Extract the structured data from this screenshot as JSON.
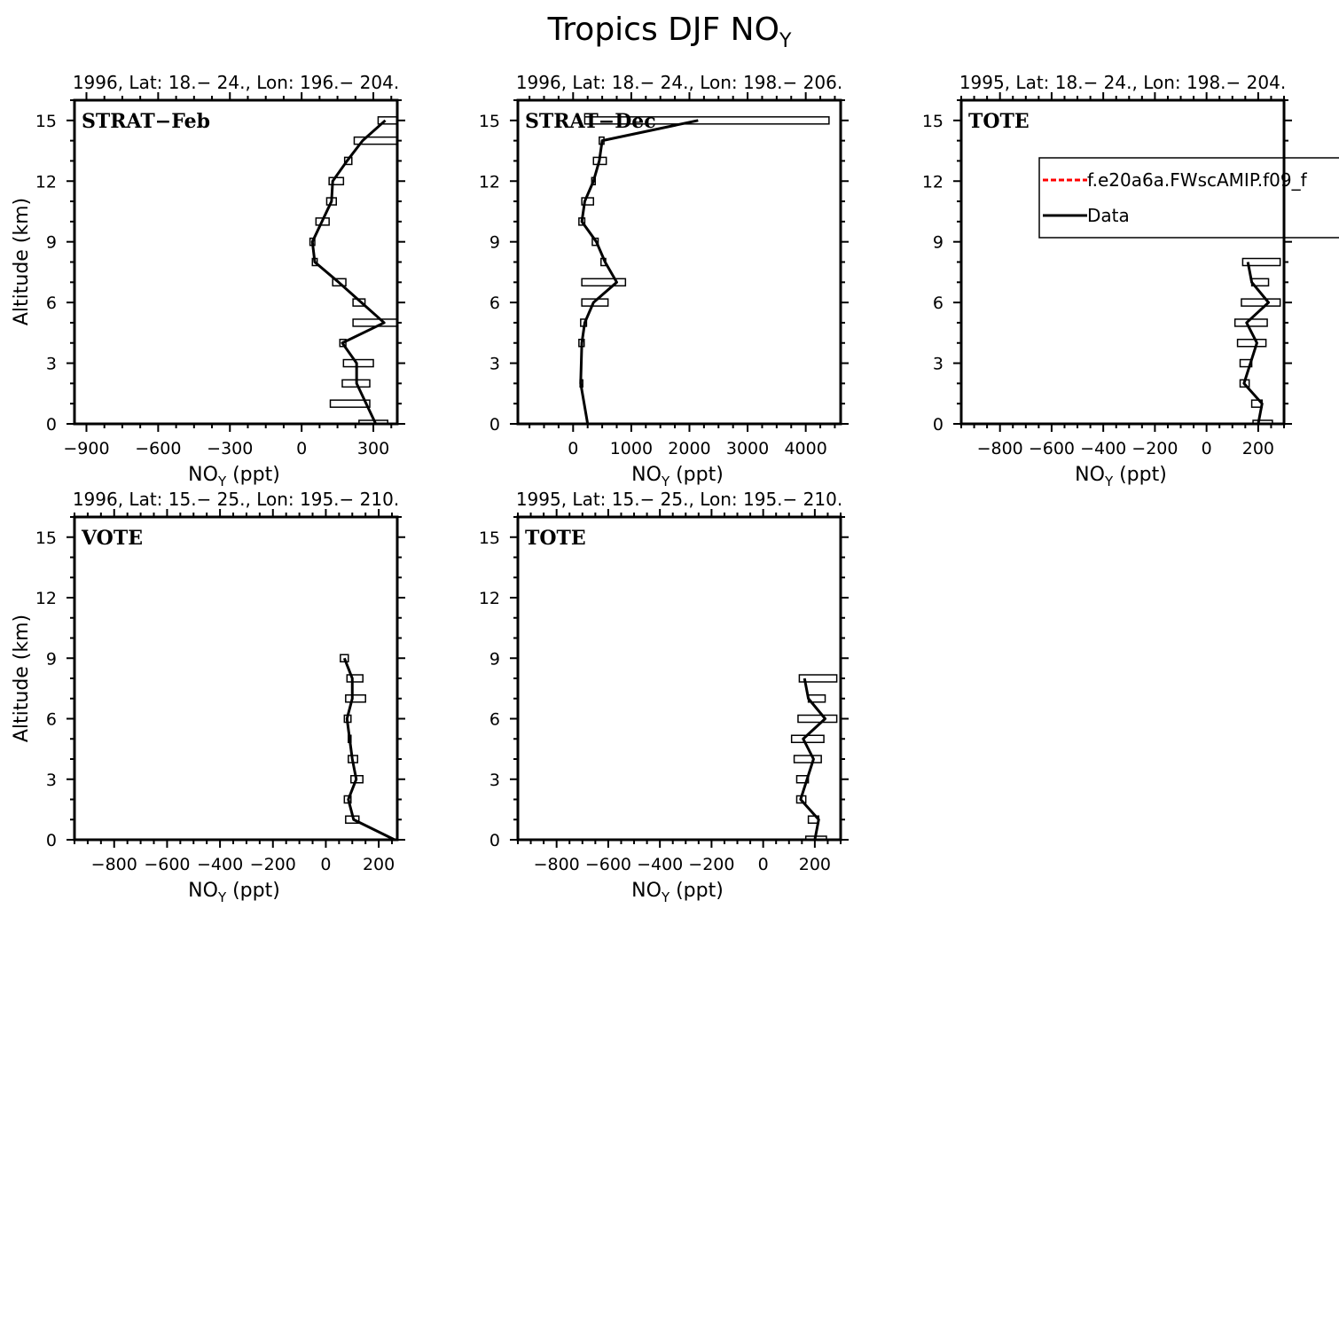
{
  "figure": {
    "title_main": "Tropics DJF NO",
    "title_sub": "Y"
  },
  "axis_labels": {
    "ylabel": "Altitude (km)",
    "xlabel_main": "NO",
    "xlabel_sub": "Y",
    "xlabel_unit": " (ppt)"
  },
  "legend": {
    "entries": [
      {
        "label": "f.e20a6a.FWscAMIP.f09_f",
        "color": "#ff0000",
        "dash": true
      },
      {
        "label": "Data",
        "color": "#000000",
        "dash": false
      }
    ]
  },
  "chart_data": [
    {
      "type": "line",
      "panel_label": "STRAT−Feb",
      "header": "1996, Lat: 18.− 24., Lon: 196.− 204.",
      "xlim": [
        -950,
        400
      ],
      "ylim": [
        0,
        16
      ],
      "xticks": [
        -900,
        -600,
        -300,
        0,
        300
      ],
      "xtick_labels": [
        "−900",
        "−600",
        "−300",
        "0",
        "300"
      ],
      "yticks": [
        0,
        3,
        6,
        9,
        12,
        15
      ],
      "profile": {
        "alt": [
          0,
          2,
          3,
          4,
          5,
          6,
          7,
          8,
          9,
          10,
          11,
          12,
          13,
          14,
          15
        ],
        "noy": [
          310,
          230,
          230,
          170,
          345,
          250,
          155,
          55,
          45,
          85,
          125,
          130,
          190,
          255,
          350
        ]
      },
      "bars": [
        {
          "alt": 0,
          "lo": 240,
          "hi": 360
        },
        {
          "alt": 1,
          "lo": 120,
          "hi": 285
        },
        {
          "alt": 2,
          "lo": 170,
          "hi": 285
        },
        {
          "alt": 3,
          "lo": 175,
          "hi": 300
        },
        {
          "alt": 4,
          "lo": 160,
          "hi": 185
        },
        {
          "alt": 5,
          "lo": 215,
          "hi": 400
        },
        {
          "alt": 6,
          "lo": 215,
          "hi": 265
        },
        {
          "alt": 7,
          "lo": 130,
          "hi": 185
        },
        {
          "alt": 8,
          "lo": 45,
          "hi": 65
        },
        {
          "alt": 9,
          "lo": 35,
          "hi": 55
        },
        {
          "alt": 10,
          "lo": 60,
          "hi": 115
        },
        {
          "alt": 11,
          "lo": 105,
          "hi": 145
        },
        {
          "alt": 12,
          "lo": 115,
          "hi": 175
        },
        {
          "alt": 13,
          "lo": 180,
          "hi": 210
        },
        {
          "alt": 14,
          "lo": 220,
          "hi": 410
        },
        {
          "alt": 15,
          "lo": 320,
          "hi": 420
        }
      ]
    },
    {
      "type": "line",
      "panel_label": "STRAT−Dec",
      "header": "1996, Lat: 18.− 24., Lon: 198.− 206.",
      "xlim": [
        -950,
        4600
      ],
      "ylim": [
        0,
        16
      ],
      "xticks": [
        0,
        1000,
        2000,
        3000,
        4000
      ],
      "xtick_labels": [
        "0",
        "1000",
        "2000",
        "3000",
        "4000"
      ],
      "yticks": [
        0,
        3,
        6,
        9,
        12,
        15
      ],
      "profile": {
        "alt": [
          0,
          2,
          4,
          5,
          6,
          7,
          8,
          9,
          10,
          11,
          12,
          13,
          14,
          15
        ],
        "noy": [
          250,
          130,
          150,
          200,
          350,
          750,
          550,
          400,
          150,
          200,
          350,
          450,
          500,
          2150
        ]
      },
      "bars": [
        {
          "alt": 2,
          "lo": 120,
          "hi": 145
        },
        {
          "alt": 4,
          "lo": 100,
          "hi": 190
        },
        {
          "alt": 5,
          "lo": 130,
          "hi": 230
        },
        {
          "alt": 6,
          "lo": 150,
          "hi": 600
        },
        {
          "alt": 7,
          "lo": 150,
          "hi": 900
        },
        {
          "alt": 8,
          "lo": 480,
          "hi": 560
        },
        {
          "alt": 9,
          "lo": 330,
          "hi": 430
        },
        {
          "alt": 10,
          "lo": 100,
          "hi": 200
        },
        {
          "alt": 11,
          "lo": 150,
          "hi": 350
        },
        {
          "alt": 12,
          "lo": 320,
          "hi": 380
        },
        {
          "alt": 13,
          "lo": 350,
          "hi": 570
        },
        {
          "alt": 14,
          "lo": 450,
          "hi": 530
        },
        {
          "alt": 15,
          "lo": 200,
          "hi": 4400
        }
      ]
    },
    {
      "type": "line",
      "panel_label": "TOTE",
      "header": "1995, Lat: 18.− 24., Lon: 198.− 204.",
      "xlim": [
        -950,
        300
      ],
      "ylim": [
        0,
        16
      ],
      "xticks": [
        -800,
        -600,
        -400,
        -200,
        0,
        200
      ],
      "xtick_labels": [
        "−800",
        "−600",
        "−400",
        "−200",
        "0",
        "200"
      ],
      "yticks": [
        0,
        3,
        6,
        9,
        12,
        15
      ],
      "profile": {
        "alt": [
          0,
          1,
          2,
          3,
          4,
          5,
          6,
          7,
          8
        ],
        "noy": [
          200,
          215,
          145,
          170,
          195,
          155,
          240,
          175,
          160
        ]
      },
      "bars": [
        {
          "alt": 0,
          "lo": 180,
          "hi": 255
        },
        {
          "alt": 1,
          "lo": 175,
          "hi": 215
        },
        {
          "alt": 2,
          "lo": 130,
          "hi": 165
        },
        {
          "alt": 3,
          "lo": 130,
          "hi": 175
        },
        {
          "alt": 4,
          "lo": 120,
          "hi": 230
        },
        {
          "alt": 5,
          "lo": 110,
          "hi": 235
        },
        {
          "alt": 6,
          "lo": 135,
          "hi": 285
        },
        {
          "alt": 7,
          "lo": 175,
          "hi": 240
        },
        {
          "alt": 8,
          "lo": 140,
          "hi": 285
        }
      ]
    },
    {
      "type": "line",
      "panel_label": "VOTE",
      "header": "1996, Lat: 15.− 25., Lon: 195.− 210.",
      "xlim": [
        -950,
        270
      ],
      "ylim": [
        0,
        16
      ],
      "xticks": [
        -800,
        -600,
        -400,
        -200,
        0,
        200
      ],
      "xtick_labels": [
        "−800",
        "−600",
        "−400",
        "−200",
        "0",
        "200"
      ],
      "yticks": [
        0,
        3,
        6,
        9,
        12,
        15
      ],
      "profile": {
        "alt": [
          0,
          1,
          2,
          3,
          4,
          5,
          6,
          7,
          8,
          9
        ],
        "noy": [
          260,
          105,
          85,
          115,
          100,
          90,
          80,
          100,
          100,
          70
        ]
      },
      "bars": [
        {
          "alt": 1,
          "lo": 75,
          "hi": 125
        },
        {
          "alt": 2,
          "lo": 70,
          "hi": 95
        },
        {
          "alt": 3,
          "lo": 95,
          "hi": 140
        },
        {
          "alt": 4,
          "lo": 85,
          "hi": 120
        },
        {
          "alt": 5,
          "lo": 85,
          "hi": 95
        },
        {
          "alt": 6,
          "lo": 70,
          "hi": 95
        },
        {
          "alt": 7,
          "lo": 75,
          "hi": 150
        },
        {
          "alt": 8,
          "lo": 80,
          "hi": 140
        },
        {
          "alt": 9,
          "lo": 55,
          "hi": 85
        }
      ]
    },
    {
      "type": "line",
      "panel_label": "TOTE",
      "header": "1995, Lat: 15.− 25., Lon: 195.− 210.",
      "xlim": [
        -950,
        300
      ],
      "ylim": [
        0,
        16
      ],
      "xticks": [
        -800,
        -600,
        -400,
        -200,
        0,
        200
      ],
      "xtick_labels": [
        "−800",
        "−600",
        "−400",
        "−200",
        "0",
        "200"
      ],
      "yticks": [
        0,
        3,
        6,
        9,
        12,
        15
      ],
      "profile": {
        "alt": [
          0,
          1,
          2,
          3,
          4,
          5,
          6,
          7,
          8
        ],
        "noy": [
          200,
          215,
          145,
          170,
          195,
          155,
          240,
          175,
          160
        ]
      },
      "bars": [
        {
          "alt": 0,
          "lo": 165,
          "hi": 245
        },
        {
          "alt": 1,
          "lo": 175,
          "hi": 215
        },
        {
          "alt": 2,
          "lo": 130,
          "hi": 165
        },
        {
          "alt": 3,
          "lo": 130,
          "hi": 175
        },
        {
          "alt": 4,
          "lo": 120,
          "hi": 225
        },
        {
          "alt": 5,
          "lo": 110,
          "hi": 235
        },
        {
          "alt": 6,
          "lo": 135,
          "hi": 285
        },
        {
          "alt": 7,
          "lo": 175,
          "hi": 240
        },
        {
          "alt": 8,
          "lo": 140,
          "hi": 285
        }
      ]
    }
  ]
}
